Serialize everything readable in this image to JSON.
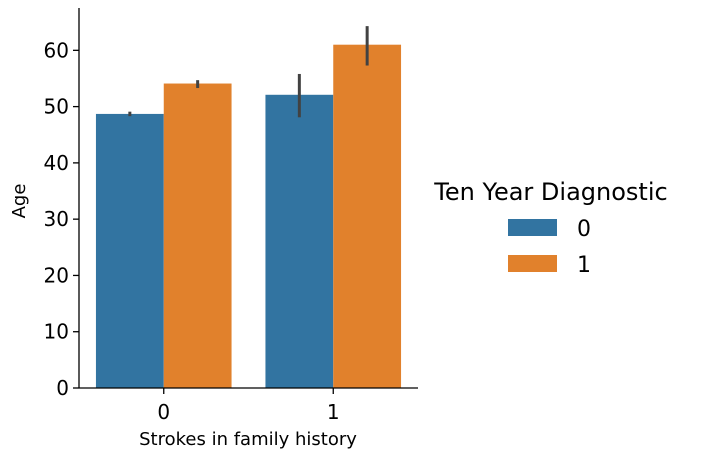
{
  "chart_data": {
    "type": "bar",
    "categories": [
      "0",
      "1"
    ],
    "series": [
      {
        "name": "0",
        "color": "#3274a1",
        "values": [
          48.7,
          52.1
        ],
        "ci_low": [
          48.3,
          48.1
        ],
        "ci_high": [
          49.1,
          55.8
        ]
      },
      {
        "name": "1",
        "color": "#e1812c",
        "values": [
          54.1,
          61.0
        ],
        "ci_low": [
          53.3,
          57.3
        ],
        "ci_high": [
          54.7,
          64.3
        ]
      }
    ],
    "xlabel": "Strokes in family history",
    "ylabel": "Age",
    "ylim": [
      0,
      67
    ],
    "yticks": [
      0,
      10,
      20,
      30,
      40,
      50,
      60
    ],
    "legend": {
      "title": "Ten Year Diagnostic",
      "placement": "right"
    },
    "grid": false
  }
}
